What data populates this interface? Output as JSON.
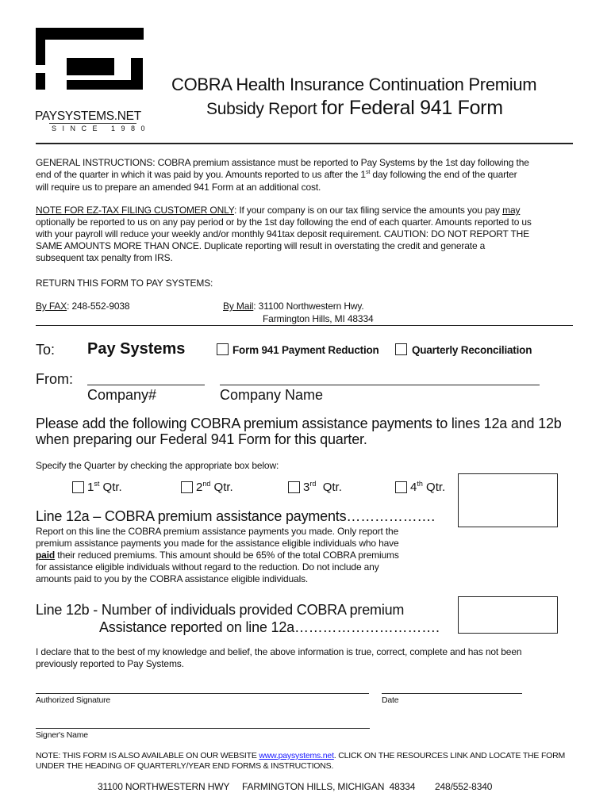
{
  "logo": {
    "brand": "PAYSYSTEMS.NET",
    "tagline": "SINCE 1980"
  },
  "title": {
    "line1": "COBRA Health Insurance Continuation Premium",
    "line2a": "Subsidy Report ",
    "line2b": "for Federal 941 Form"
  },
  "general_instructions": {
    "line1": "GENERAL INSTRUCTIONS:  COBRA premium assistance must be reported to Pay Systems by the 1st day following the",
    "line2a": "end of the quarter in which it was paid by you.  Amounts reported to us after the 1",
    "line2sup": "st",
    "line2b": " day following the end of the quarter",
    "line3": "will require us to prepare an amended 941 Form at an additional cost."
  },
  "note_eztax": {
    "heading": "NOTE FOR EZ-TAX FILING CUSTOMER ONLY",
    "line1a": ":  If your company is on our tax filing service the amounts you pay ",
    "line1b": "may",
    "line2": "optionally be reported to us on any pay period or by the 1st day following the end of each quarter.  Amounts reported to us",
    "line3": "with your payroll will reduce your weekly and/or monthly 941tax deposit requirement.  CAUTION: DO NOT REPORT THE",
    "line4": "SAME AMOUNTS MORE THAN ONCE.  Duplicate reporting will result in overstating the credit and generate a",
    "line5": "subsequent tax penalty from IRS."
  },
  "return": {
    "heading": "RETURN THIS FORM TO PAY SYSTEMS:",
    "fax_label": "By FAX",
    "fax_value": ": 248-552-9038",
    "mail_label": "By Mail",
    "mail_line1": ": 31100 Northwestern Hwy.",
    "mail_line2": "Farmington Hills, MI 48334"
  },
  "to": {
    "label": "To:",
    "value": "Pay Systems"
  },
  "options": [
    {
      "label": "Form 941 Payment Reduction",
      "checked": false
    },
    {
      "label": "Quarterly Reconciliation",
      "checked": false
    }
  ],
  "from": {
    "label": "From:",
    "company_number_label": "Company#",
    "company_name_label": "Company Name",
    "company_number": "",
    "company_name": ""
  },
  "please_add": {
    "line1": "Please add the following COBRA premium assistance payments to lines 12a and 12b",
    "line2": "when preparing our Federal 941 Form for this quarter."
  },
  "quarter_prompt": "Specify the Quarter by checking the appropriate box below:",
  "quarters": [
    {
      "num": "1",
      "sup": "st",
      "label": " Qtr.",
      "checked": false
    },
    {
      "num": "2",
      "sup": "nd",
      "label": " Qtr.",
      "checked": false
    },
    {
      "num": "3",
      "sup": "rd",
      "label": "  Qtr.",
      "checked": false
    },
    {
      "num": "4",
      "sup": "th",
      "label": " Qtr.",
      "checked": false
    }
  ],
  "line12a": {
    "heading": "Line 12a – COBRA premium assistance payments……………….",
    "body1": "Report on this line the COBRA premium assistance payments you made. Only report the",
    "body2": "premium assistance payments you made for the assistance eligible individuals who have",
    "body3_bold": "paid",
    "body3": " their reduced premiums. This amount should be 65% of the total COBRA premiums",
    "body4": "for assistance eligible individuals without regard to the reduction. Do not include any",
    "body5": "amounts paid to you by the COBRA assistance eligible individuals.",
    "value": ""
  },
  "line12b": {
    "heading1": "Line 12b - Number of individuals provided COBRA premium",
    "heading2": "Assistance reported on line 12a………………………….",
    "value": ""
  },
  "declaration": {
    "line1": "I declare that to the best of my knowledge and belief, the above information is true, correct, complete and has not been",
    "line2": "previously reported to Pay Systems."
  },
  "signature": {
    "signature_label": "Authorized Signature",
    "date_label": "Date",
    "signer_label": "Signer's Name"
  },
  "website_note": {
    "line1a": "NOTE:  THIS FORM IS ALSO AVAILABLE ON OUR WEBSITE ",
    "link": "www.paysystems.net",
    "line1b": ".  CLICK ON THE RESOURCES LINK AND LOCATE THE FORM",
    "line2": "UNDER THE HEADING OF QUARTERLY/YEAR END FORMS & INSTRUCTIONS."
  },
  "footer": {
    "address": "31100 NORTHWESTERN HWY",
    "city": "FARMINGTON HILLS, MICHIGAN  48334",
    "phone": "248/552-8340"
  }
}
